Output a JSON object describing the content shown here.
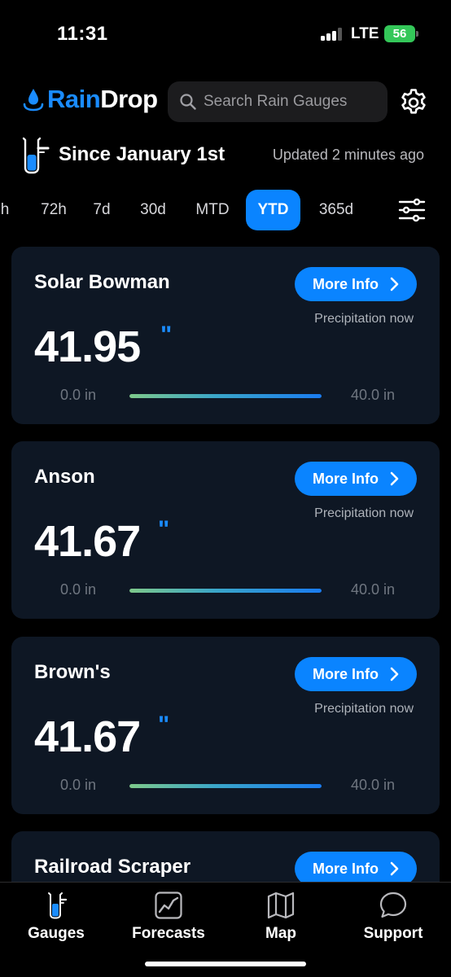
{
  "status_bar": {
    "time": "11:31",
    "network": "LTE",
    "battery": "56"
  },
  "header": {
    "brand_part1": "Rain",
    "brand_part2": "Drop",
    "search_placeholder": "Search Rain Gauges"
  },
  "period": {
    "title": "Since January 1st",
    "updated": "Updated 2 minutes ago"
  },
  "tabs": [
    {
      "label": "h",
      "active": false
    },
    {
      "label": "72h",
      "active": false
    },
    {
      "label": "7d",
      "active": false
    },
    {
      "label": "30d",
      "active": false
    },
    {
      "label": "MTD",
      "active": false
    },
    {
      "label": "YTD",
      "active": true
    },
    {
      "label": "365d",
      "active": false
    }
  ],
  "cards": [
    {
      "name": "Solar Bowman",
      "more_label": "More Info",
      "precip_label": "Precipitation now",
      "value": "41.95",
      "unit": "\"",
      "range_min": "0.0 in",
      "range_max": "40.0 in",
      "fill_fraction": 1.0
    },
    {
      "name": "Anson",
      "more_label": "More Info",
      "precip_label": "Precipitation now",
      "value": "41.67",
      "unit": "\"",
      "range_min": "0.0 in",
      "range_max": "40.0 in",
      "fill_fraction": 1.0
    },
    {
      "name": "Brown's",
      "more_label": "More Info",
      "precip_label": "Precipitation now",
      "value": "41.67",
      "unit": "\"",
      "range_min": "0.0 in",
      "range_max": "40.0 in",
      "fill_fraction": 1.0
    },
    {
      "name": "Railroad Scraper",
      "more_label": "More Info"
    }
  ],
  "bottom_nav": [
    {
      "label": "Gauges",
      "icon": "rain-gauge-icon"
    },
    {
      "label": "Forecasts",
      "icon": "chart-line-icon"
    },
    {
      "label": "Map",
      "icon": "map-icon"
    },
    {
      "label": "Support",
      "icon": "chat-bubble-icon"
    }
  ],
  "colors": {
    "accent": "#0a84ff",
    "card_bg": "#0e1724",
    "battery": "#34c759"
  }
}
